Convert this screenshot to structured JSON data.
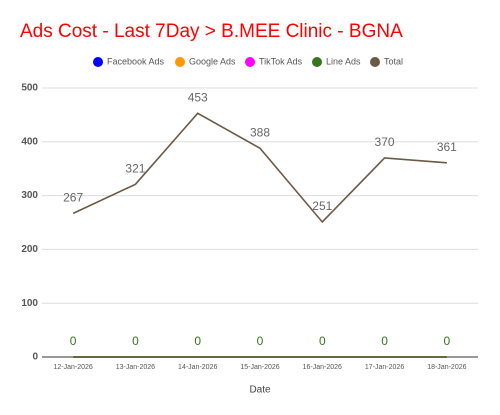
{
  "chart_data": {
    "type": "line",
    "title": "Ads Cost - Last 7Day > B.MEE Clinic - BGNA",
    "x_label": "Date",
    "categories": [
      "12-Jan-2026",
      "13-Jan-2026",
      "14-Jan-2026",
      "15-Jan-2026",
      "16-Jan-2026",
      "17-Jan-2026",
      "18-Jan-2026"
    ],
    "series": [
      {
        "name": "Facebook Ads",
        "color": "#0000ff",
        "values": [
          0,
          0,
          0,
          0,
          0,
          0,
          0
        ]
      },
      {
        "name": "Google Ads",
        "color": "#ff9900",
        "values": [
          0,
          0,
          0,
          0,
          0,
          0,
          0
        ]
      },
      {
        "name": "TikTok Ads",
        "color": "#ff00ff",
        "values": [
          0,
          0,
          0,
          0,
          0,
          0,
          0
        ]
      },
      {
        "name": "Line Ads",
        "color": "#38761d",
        "values": [
          0,
          0,
          0,
          0,
          0,
          0,
          0
        ],
        "show_labels": true
      },
      {
        "name": "Total",
        "color": "#6b5a45",
        "values": [
          267,
          321,
          453,
          388,
          251,
          370,
          361
        ],
        "show_labels": true
      }
    ],
    "ylim": [
      0,
      500
    ],
    "yticks": [
      0,
      100,
      200,
      300,
      400,
      500
    ],
    "grid": true,
    "legend": "top"
  }
}
